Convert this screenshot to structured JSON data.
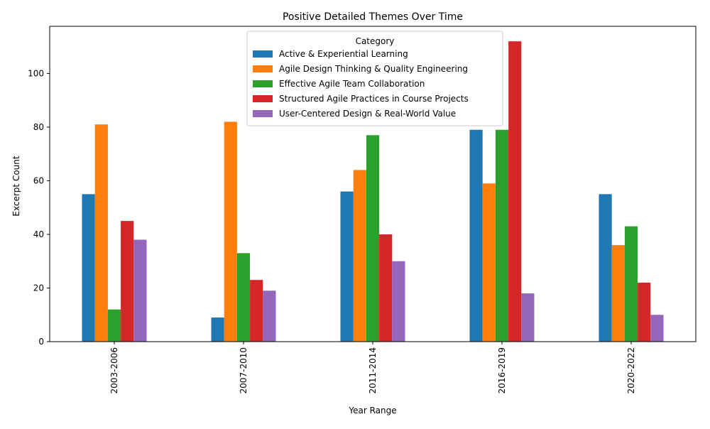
{
  "chart_data": {
    "type": "bar",
    "title": "Positive Detailed Themes Over Time",
    "xlabel": "Year Range",
    "ylabel": "Excerpt Count",
    "ylim": [
      0,
      117.6
    ],
    "yticks": [
      0,
      20,
      40,
      60,
      80,
      100
    ],
    "grid": false,
    "legend_title": "Category",
    "legend_position": "top-center",
    "categories": [
      "2003-2006",
      "2007-2010",
      "2011-2014",
      "2016-2019",
      "2020-2022"
    ],
    "series": [
      {
        "name": "Active & Experiential Learning",
        "color": "#1f77b4",
        "values": [
          55,
          9,
          56,
          79,
          55
        ]
      },
      {
        "name": "Agile Design Thinking & Quality Engineering",
        "color": "#ff7f0e",
        "values": [
          81,
          82,
          64,
          59,
          36
        ]
      },
      {
        "name": "Effective Agile Team Collaboration",
        "color": "#2ca02c",
        "values": [
          12,
          33,
          77,
          79,
          43
        ]
      },
      {
        "name": "Structured Agile Practices in Course Projects",
        "color": "#d62728",
        "values": [
          45,
          23,
          40,
          112,
          22
        ]
      },
      {
        "name": "User-Centered Design & Real-World Value",
        "color": "#9467bd",
        "values": [
          38,
          19,
          30,
          18,
          10
        ]
      }
    ]
  }
}
